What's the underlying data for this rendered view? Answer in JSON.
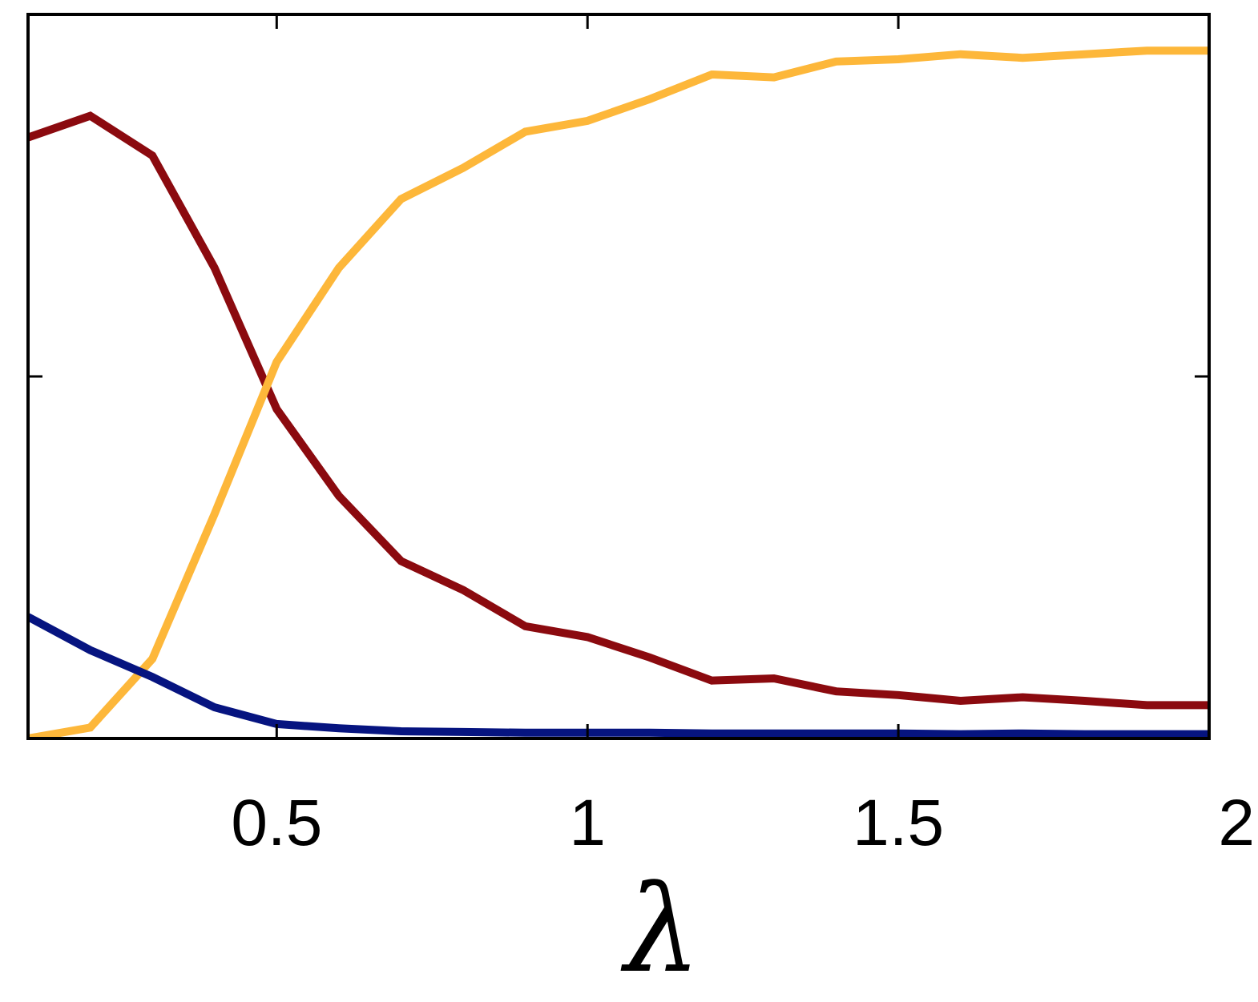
{
  "chart_data": {
    "type": "line",
    "xlabel": "λ",
    "ylabel": "",
    "xlim": [
      0.1,
      2.0
    ],
    "ylim": [
      0,
      1
    ],
    "x_ticks": [
      0.5,
      1.0,
      1.5,
      2.0
    ],
    "x_tick_labels": [
      "0.5",
      "1",
      "1.5",
      "2"
    ],
    "y_ticks": [
      0.5
    ],
    "grid": false,
    "legend": "none",
    "x": [
      0.1,
      0.2,
      0.3,
      0.4,
      0.5,
      0.6,
      0.7,
      0.8,
      0.9,
      1.0,
      1.1,
      1.2,
      1.3,
      1.4,
      1.5,
      1.6,
      1.7,
      1.8,
      1.9,
      2.0
    ],
    "series": [
      {
        "color": "#8b0a0f",
        "values": [
          0.83,
          0.86,
          0.805,
          0.65,
          0.455,
          0.335,
          0.245,
          0.205,
          0.155,
          0.14,
          0.112,
          0.08,
          0.083,
          0.065,
          0.06,
          0.052,
          0.057,
          0.052,
          0.046,
          0.046
        ]
      },
      {
        "color": "#fdb73a",
        "values": [
          0.0,
          0.015,
          0.11,
          0.31,
          0.52,
          0.65,
          0.745,
          0.788,
          0.838,
          0.853,
          0.883,
          0.917,
          0.913,
          0.935,
          0.938,
          0.945,
          0.94,
          0.945,
          0.95,
          0.95
        ]
      },
      {
        "color": "#061480",
        "values": [
          0.168,
          0.122,
          0.085,
          0.043,
          0.02,
          0.014,
          0.01,
          0.009,
          0.008,
          0.008,
          0.008,
          0.007,
          0.007,
          0.007,
          0.007,
          0.006,
          0.007,
          0.006,
          0.006,
          0.006
        ]
      }
    ]
  }
}
